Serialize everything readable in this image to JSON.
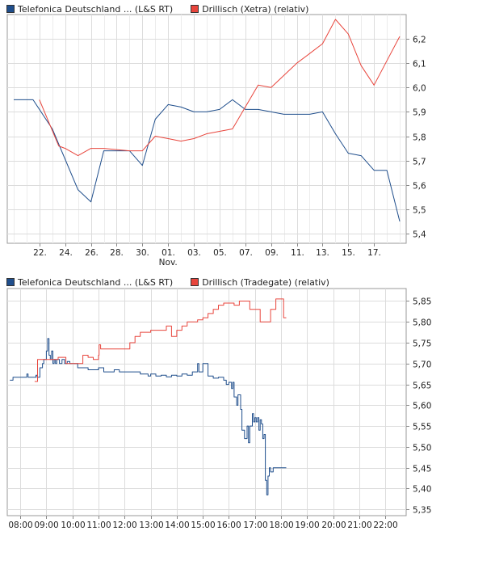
{
  "chart_data": [
    {
      "type": "line",
      "title": "",
      "legend": [
        {
          "label": "Telefonica Deutschland ... (L&S RT)",
          "color": "#1f4e8c"
        },
        {
          "label": "Drillisch (Xetra) (relativ)",
          "color": "#e8453c"
        }
      ],
      "x_tick_labels": [
        "22.",
        "24.",
        "26.",
        "28.",
        "30.",
        "01.",
        "03.",
        "05.",
        "07.",
        "09.",
        "11.",
        "13.",
        "15.",
        "17."
      ],
      "x_tick_positions": [
        2,
        4,
        6,
        8,
        10,
        12,
        14,
        16,
        18,
        20,
        22,
        24,
        26,
        28
      ],
      "x_sub_label": {
        "text": "Nov.",
        "at": 12
      },
      "xlim": [
        -0.5,
        30.5
      ],
      "y_ticks": [
        5.4,
        5.5,
        5.6,
        5.7,
        5.8,
        5.9,
        6.0,
        6.1,
        6.2
      ],
      "y_tick_labels": [
        "5,4",
        "5,5",
        "5,6",
        "5,7",
        "5,8",
        "5,9",
        "6,0",
        "6,1",
        "6,2"
      ],
      "ylim": [
        5.36,
        6.3
      ],
      "series": [
        {
          "name": "Telefonica Deutschland ... (L&S RT)",
          "color": "#1f4e8c",
          "x": [
            0,
            1.5,
            3,
            5,
            6,
            7,
            9,
            10,
            11,
            12,
            13,
            14,
            15,
            16,
            17,
            18,
            19,
            20,
            21,
            22,
            23,
            24,
            25,
            26,
            27,
            28,
            29,
            30
          ],
          "y": [
            5.95,
            5.95,
            5.83,
            5.58,
            5.53,
            5.74,
            5.74,
            5.68,
            5.87,
            5.93,
            5.92,
            5.9,
            5.9,
            5.91,
            5.95,
            5.91,
            5.91,
            5.9,
            5.89,
            5.89,
            5.89,
            5.9,
            5.81,
            5.73,
            5.72,
            5.66,
            5.66,
            5.45
          ]
        },
        {
          "name": "Drillisch (Xetra) (relativ)",
          "color": "#e8453c",
          "x": [
            2,
            3.5,
            4,
            5,
            6,
            7,
            9,
            10,
            11,
            12,
            13,
            14,
            15,
            16,
            17,
            18,
            19,
            20,
            21,
            22,
            23,
            24,
            25,
            26,
            27,
            28,
            29,
            30
          ],
          "y": [
            5.95,
            5.76,
            5.75,
            5.72,
            5.75,
            5.75,
            5.74,
            5.74,
            5.8,
            5.79,
            5.78,
            5.79,
            5.81,
            5.82,
            5.83,
            5.92,
            6.01,
            6.0,
            6.05,
            6.1,
            6.14,
            6.18,
            6.28,
            6.22,
            6.09,
            6.01,
            6.11,
            6.21
          ]
        }
      ]
    },
    {
      "type": "line",
      "title": "",
      "legend": [
        {
          "label": "Telefonica Deutschland ... (L&S RT)",
          "color": "#1f4e8c"
        },
        {
          "label": "Drillisch (Tradegate) (relativ)",
          "color": "#e8453c"
        }
      ],
      "x_tick_labels": [
        "08:00",
        "09:00",
        "10:00",
        "11:00",
        "12:00",
        "13:00",
        "14:00",
        "15:00",
        "16:00",
        "17:00",
        "18:00",
        "19:00",
        "20:00",
        "21:00",
        "22:00"
      ],
      "x_tick_positions": [
        8,
        9,
        10,
        11,
        12,
        13,
        14,
        15,
        16,
        17,
        18,
        19,
        20,
        21,
        22
      ],
      "xlim": [
        7.5,
        22.8
      ],
      "y_ticks": [
        5.35,
        5.4,
        5.45,
        5.5,
        5.55,
        5.6,
        5.65,
        5.7,
        5.75,
        5.8,
        5.85
      ],
      "y_tick_labels": [
        "5,35",
        "5,40",
        "5,45",
        "5,50",
        "5,55",
        "5,60",
        "5,65",
        "5,70",
        "5,75",
        "5,80",
        "5,85"
      ],
      "ylim": [
        5.335,
        5.88
      ],
      "series": [
        {
          "name": "Telefonica Deutschland ... (L&S RT)",
          "color": "#1f4e8c",
          "x": [
            7.6,
            7.7,
            7.72,
            8.2,
            8.25,
            8.3,
            8.5,
            8.6,
            8.65,
            8.75,
            8.85,
            8.9,
            9.0,
            9.05,
            9.1,
            9.15,
            9.2,
            9.25,
            9.3,
            9.35,
            9.4,
            9.5,
            9.6,
            9.7,
            9.8,
            9.9,
            10.0,
            10.2,
            10.4,
            10.6,
            10.8,
            11.0,
            11.2,
            11.4,
            11.6,
            11.8,
            12.0,
            12.3,
            12.6,
            12.9,
            13.0,
            13.2,
            13.4,
            13.6,
            13.8,
            14.0,
            14.2,
            14.4,
            14.6,
            14.8,
            14.85,
            15.0,
            15.1,
            15.2,
            15.4,
            15.6,
            15.8,
            15.9,
            16.0,
            16.1,
            16.15,
            16.2,
            16.3,
            16.35,
            16.45,
            16.5,
            16.6,
            16.7,
            16.75,
            16.8,
            16.9,
            16.95,
            17.0,
            17.05,
            17.1,
            17.15,
            17.2,
            17.25,
            17.3,
            17.35,
            17.4,
            17.45,
            17.5,
            17.55,
            17.6,
            17.7,
            17.8,
            18.0,
            18.2
          ],
          "y": [
            5.66,
            5.66,
            5.667,
            5.667,
            5.675,
            5.667,
            5.667,
            5.672,
            5.667,
            5.69,
            5.7,
            5.71,
            5.73,
            5.76,
            5.72,
            5.71,
            5.73,
            5.7,
            5.71,
            5.7,
            5.71,
            5.7,
            5.71,
            5.7,
            5.705,
            5.7,
            5.7,
            5.69,
            5.69,
            5.685,
            5.685,
            5.69,
            5.68,
            5.68,
            5.685,
            5.68,
            5.68,
            5.68,
            5.675,
            5.67,
            5.675,
            5.67,
            5.672,
            5.668,
            5.672,
            5.67,
            5.675,
            5.672,
            5.68,
            5.7,
            5.68,
            5.7,
            5.7,
            5.67,
            5.665,
            5.667,
            5.66,
            5.65,
            5.655,
            5.64,
            5.655,
            5.62,
            5.6,
            5.625,
            5.59,
            5.54,
            5.52,
            5.55,
            5.51,
            5.55,
            5.58,
            5.56,
            5.57,
            5.56,
            5.57,
            5.54,
            5.565,
            5.555,
            5.52,
            5.53,
            5.42,
            5.385,
            5.43,
            5.45,
            5.44,
            5.45,
            5.45,
            5.45,
            5.45
          ]
        },
        {
          "name": "Drillisch (Tradegate) (relativ)",
          "color": "#e8453c",
          "x": [
            8.55,
            8.65,
            8.66,
            9.15,
            9.3,
            9.45,
            9.75,
            10.0,
            10.2,
            10.4,
            10.6,
            10.8,
            11.0,
            11.02,
            11.08,
            12.0,
            12.2,
            12.4,
            12.6,
            12.8,
            13.0,
            13.2,
            13.4,
            13.6,
            13.8,
            14.0,
            14.2,
            14.4,
            14.6,
            14.8,
            15.0,
            15.2,
            15.4,
            15.6,
            15.8,
            16.0,
            16.2,
            16.4,
            16.6,
            16.8,
            17.0,
            17.2,
            17.4,
            17.6,
            17.8,
            18.0,
            18.1,
            18.2
          ],
          "y": [
            5.657,
            5.657,
            5.71,
            5.71,
            5.71,
            5.715,
            5.7,
            5.7,
            5.7,
            5.72,
            5.715,
            5.71,
            5.72,
            5.745,
            5.735,
            5.735,
            5.75,
            5.765,
            5.775,
            5.775,
            5.78,
            5.78,
            5.78,
            5.79,
            5.765,
            5.78,
            5.79,
            5.8,
            5.8,
            5.805,
            5.81,
            5.82,
            5.83,
            5.84,
            5.845,
            5.845,
            5.84,
            5.85,
            5.85,
            5.83,
            5.83,
            5.8,
            5.8,
            5.83,
            5.855,
            5.855,
            5.81,
            5.81
          ]
        }
      ]
    }
  ]
}
